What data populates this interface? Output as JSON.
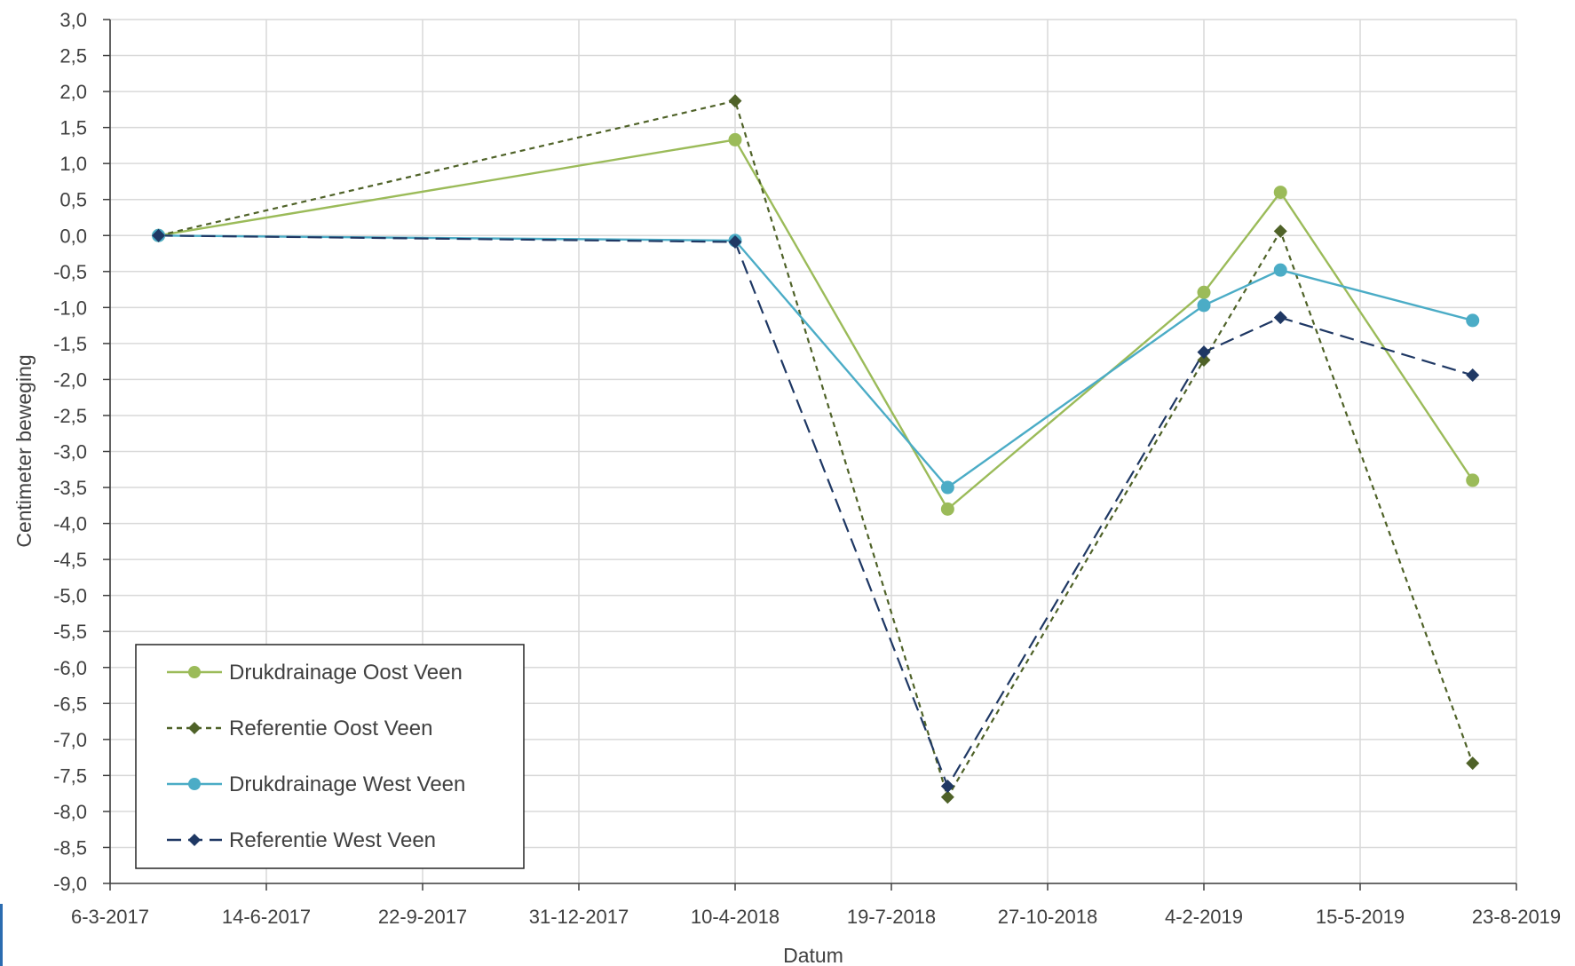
{
  "chart_data": {
    "type": "line",
    "title": "",
    "xlabel": "Datum",
    "ylabel": "Centimeter beweging",
    "x_type": "date",
    "xlim": [
      "2017-03-06",
      "2019-08-23"
    ],
    "ylim": [
      -9.0,
      3.0
    ],
    "y_step": 0.5,
    "x_tick_labels": [
      "6-3-2017",
      "14-6-2017",
      "22-9-2017",
      "31-12-2017",
      "10-4-2018",
      "19-7-2018",
      "27-10-2018",
      "4-2-2019",
      "15-5-2019",
      "23-8-2019"
    ],
    "y_tick_labels": [
      "3,0",
      "2,5",
      "2,0",
      "1,5",
      "1,0",
      "0,5",
      "0,0",
      "-0,5",
      "-1,0",
      "-1,5",
      "-2,0",
      "-2,5",
      "-3,0",
      "-3,5",
      "-4,0",
      "-4,5",
      "-5,0",
      "-5,5",
      "-6,0",
      "-6,5",
      "-7,0",
      "-7,5",
      "-8,0",
      "-8,5",
      "-9,0"
    ],
    "grid": true,
    "legend_position": "bottom-left",
    "series": [
      {
        "name": "Drukdrainage Oost Veen",
        "color": "#9bbb59",
        "line_style": "solid",
        "marker": "circle",
        "x": [
          "2017-04-06",
          "2018-04-10",
          "2018-08-24",
          "2019-02-04",
          "2019-03-25",
          "2019-07-26"
        ],
        "values": [
          0.0,
          1.33,
          -3.8,
          -0.79,
          0.6,
          -3.4
        ]
      },
      {
        "name": "Referentie Oost Veen",
        "color": "#4f6228",
        "line_style": "dashed",
        "marker": "diamond",
        "x": [
          "2017-04-06",
          "2018-04-10",
          "2018-08-24",
          "2019-02-04",
          "2019-03-25",
          "2019-07-26"
        ],
        "values": [
          0.0,
          1.87,
          -7.8,
          -1.73,
          0.06,
          -7.33
        ]
      },
      {
        "name": "Drukdrainage West Veen",
        "color": "#4bacc6",
        "line_style": "solid",
        "marker": "circle",
        "x": [
          "2017-04-06",
          "2018-04-10",
          "2018-08-24",
          "2019-02-04",
          "2019-03-25",
          "2019-07-26"
        ],
        "values": [
          0.0,
          -0.07,
          -3.5,
          -0.97,
          -0.48,
          -1.18
        ]
      },
      {
        "name": "Referentie West Veen",
        "color": "#1f3864",
        "line_style": "dashed",
        "marker": "diamond",
        "x": [
          "2017-04-06",
          "2018-04-10",
          "2018-08-24",
          "2019-02-04",
          "2019-03-25",
          "2019-07-26"
        ],
        "values": [
          0.0,
          -0.09,
          -7.65,
          -1.62,
          -1.14,
          -1.94
        ]
      }
    ]
  }
}
